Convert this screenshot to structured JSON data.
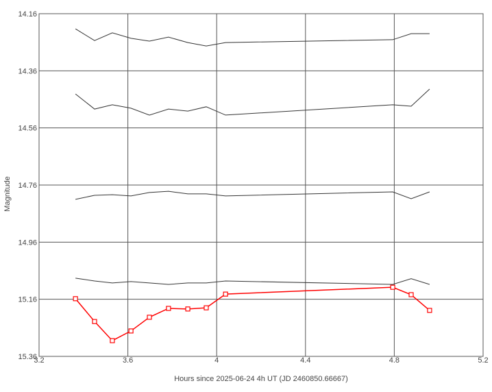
{
  "chart_data": {
    "type": "line",
    "x_label": "Hours since 2025-06-24 4h UT (JD 2460850.66667)",
    "y_label": "Magnitude",
    "xlim": [
      3.2,
      5.2
    ],
    "xticks": [
      3.2,
      3.6,
      4,
      4.4,
      4.8,
      5.2
    ],
    "ylim": [
      15.36,
      14.16
    ],
    "yticks": [
      14.16,
      14.36,
      14.56,
      14.76,
      14.96,
      15.16,
      15.36
    ],
    "grid": true,
    "x": [
      3.364,
      3.45,
      3.53,
      3.614,
      3.697,
      3.783,
      3.87,
      3.953,
      4.04,
      4.793,
      4.876,
      4.959
    ],
    "series": [
      {
        "color": "#333333",
        "values": [
          14.213,
          14.254,
          14.227,
          14.246,
          14.256,
          14.242,
          14.261,
          14.273,
          14.261,
          14.251,
          14.23,
          14.23
        ]
      },
      {
        "color": "#333333",
        "values": [
          14.441,
          14.494,
          14.479,
          14.491,
          14.515,
          14.494,
          14.501,
          14.486,
          14.515,
          14.479,
          14.484,
          14.424
        ]
      },
      {
        "color": "#333333",
        "values": [
          14.81,
          14.796,
          14.794,
          14.798,
          14.786,
          14.782,
          14.791,
          14.791,
          14.798,
          14.784,
          14.808,
          14.784
        ]
      },
      {
        "color": "#333333",
        "values": [
          15.086,
          15.096,
          15.103,
          15.098,
          15.103,
          15.108,
          15.103,
          15.103,
          15.096,
          15.108,
          15.088,
          15.108
        ]
      },
      {
        "color": "#ff0000",
        "marker": "square",
        "values": [
          15.158,
          15.238,
          15.305,
          15.271,
          15.223,
          15.192,
          15.194,
          15.19,
          15.142,
          15.118,
          15.144,
          15.199
        ]
      }
    ]
  }
}
